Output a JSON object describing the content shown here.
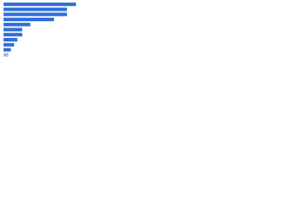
{
  "chart_data": {
    "type": "bar",
    "orientation": "horizontal",
    "categories": [
      null,
      null,
      null,
      null,
      null,
      null,
      null,
      null,
      null,
      null,
      null
    ],
    "values": [
      89,
      78,
      78,
      62,
      33,
      23,
      23,
      17,
      13,
      9,
      6
    ],
    "colors": [
      "#2f6fd8",
      "#2f6fd8",
      "#2f6fd8",
      "#2f6fd8",
      "#2f6fd8",
      "#2f6fd8",
      "#2f6fd8",
      "#2f6fd8",
      "#2f6fd8",
      "#2f6fd8",
      "#a9bfe3"
    ],
    "xlim": [
      0,
      100
    ]
  }
}
